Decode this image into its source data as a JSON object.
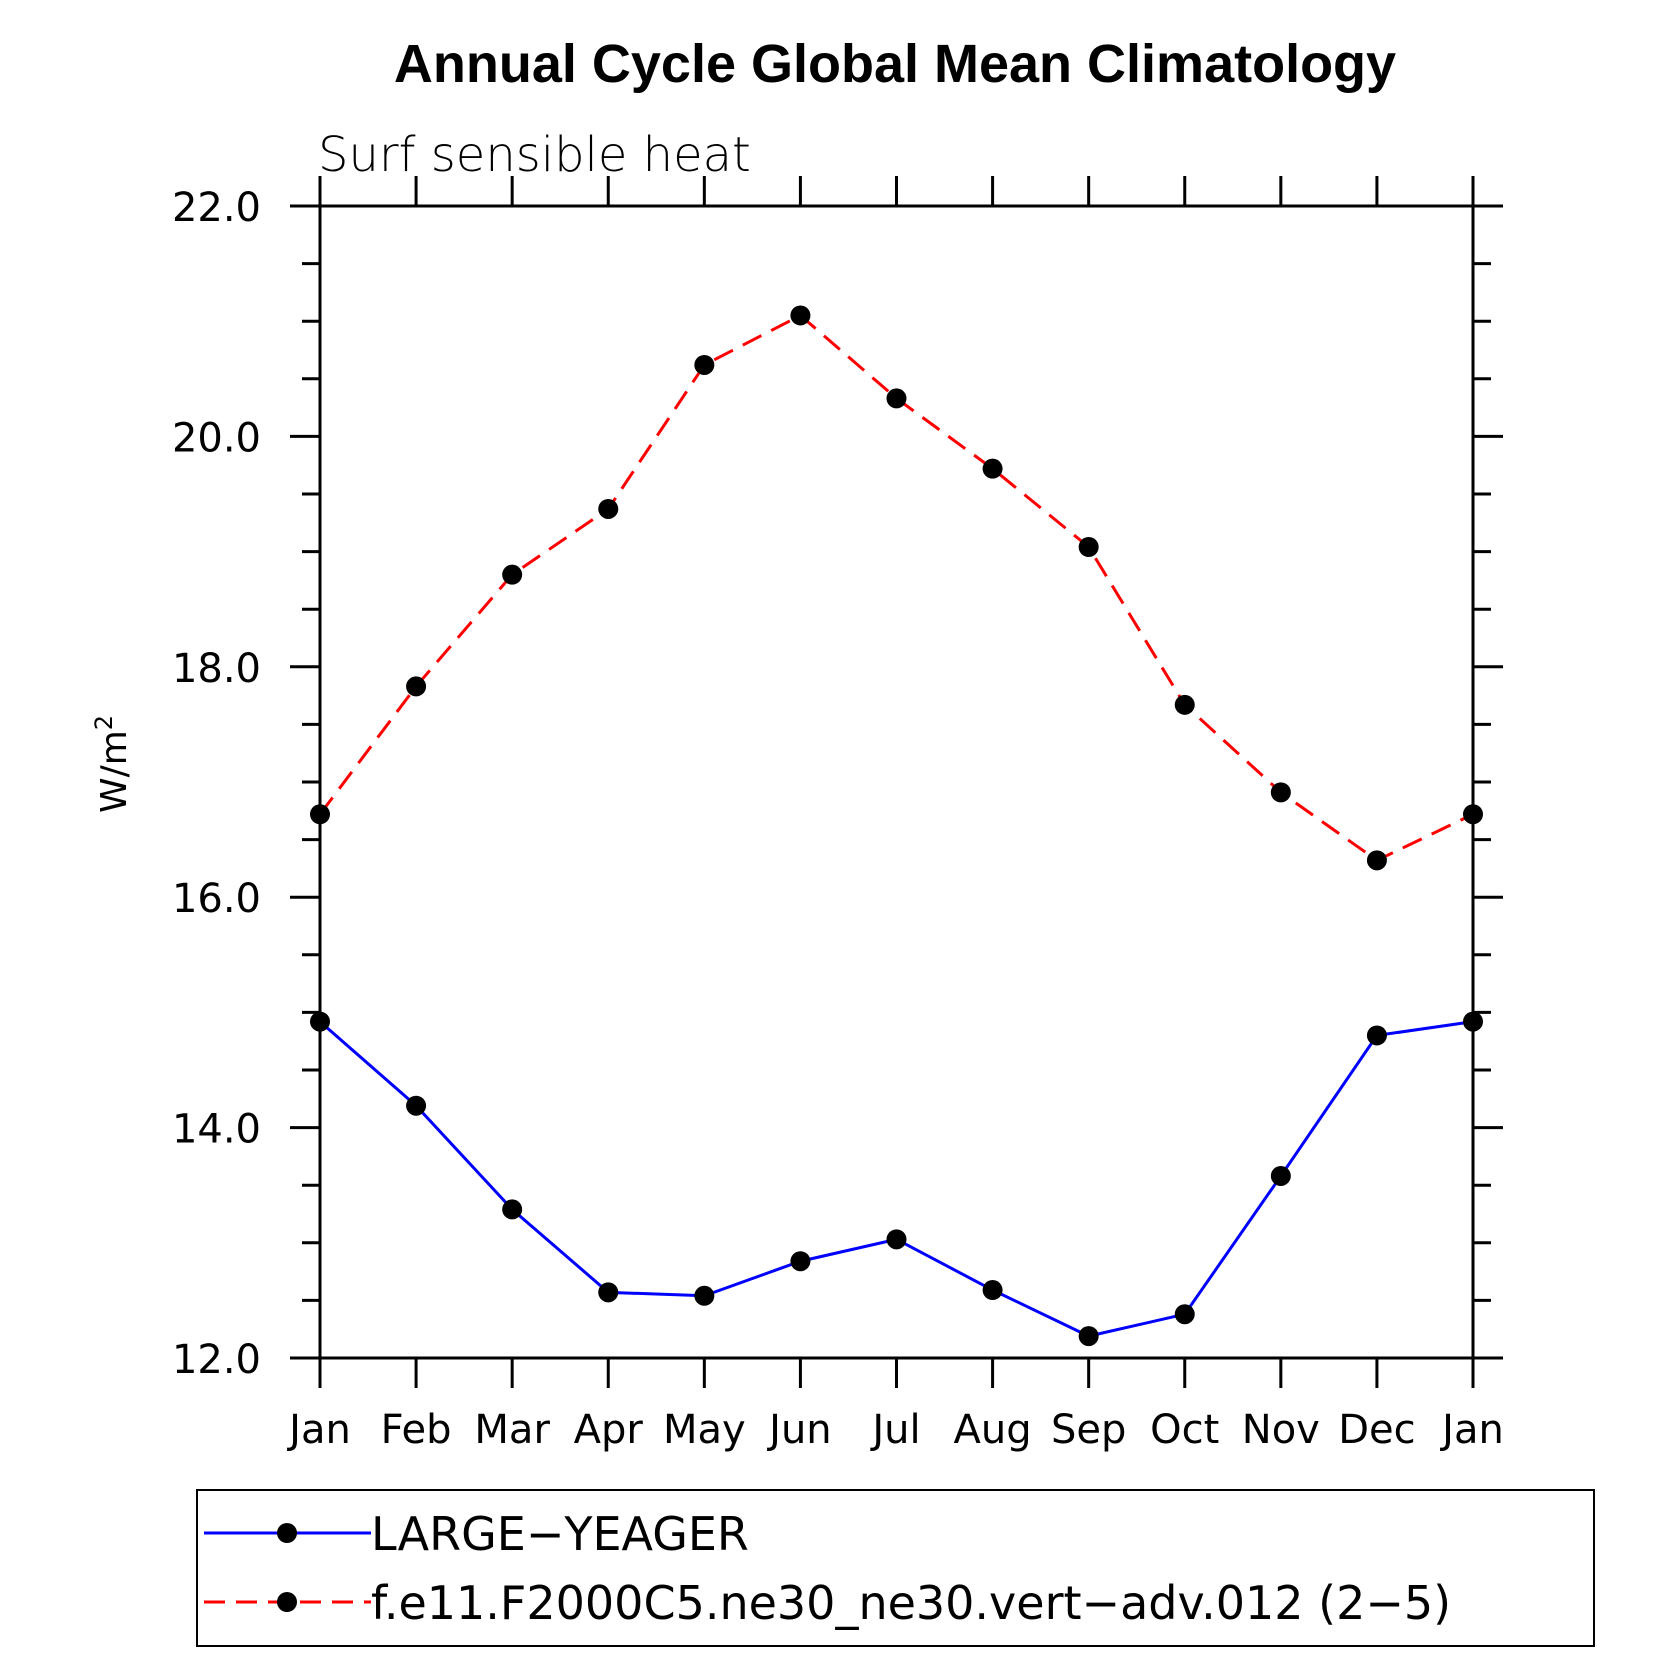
{
  "chart_data": {
    "type": "line",
    "title": "Annual Cycle Global Mean Climatology",
    "subtitle": "Surf sensible heat",
    "xlabel": "",
    "ylabel_base": "W/m",
    "ylabel_sup": "2",
    "categories": [
      "Jan",
      "Feb",
      "Mar",
      "Apr",
      "May",
      "Jun",
      "Jul",
      "Aug",
      "Sep",
      "Oct",
      "Nov",
      "Dec",
      "Jan"
    ],
    "ylim": [
      12.0,
      22.0
    ],
    "y_major_ticks": [
      "12.0",
      "14.0",
      "16.0",
      "18.0",
      "20.0",
      "22.0"
    ],
    "y_minor_step": 0.5,
    "grid": false,
    "legend_position": "bottom",
    "series": [
      {
        "name": "LARGE-YEAGER",
        "color": "#0000ff",
        "dash": "solid",
        "marker": "filled-circle",
        "values": [
          14.92,
          14.19,
          13.29,
          12.57,
          12.54,
          12.84,
          13.03,
          12.59,
          12.19,
          12.38,
          13.58,
          14.8,
          14.92
        ]
      },
      {
        "name": "f.e11.F2000C5.ne30_ne30.vert−adv.012 (2−5)",
        "color": "#ff0000",
        "dash": "dashed",
        "marker": "filled-circle",
        "values": [
          16.72,
          17.83,
          18.8,
          19.37,
          20.62,
          21.05,
          20.33,
          19.72,
          19.04,
          17.67,
          16.91,
          16.32,
          16.72
        ]
      }
    ]
  },
  "legend": {
    "entries": [
      "LARGE−YEAGER",
      "f.e11.F2000C5.ne30_ne30.vert−adv.012 (2−5)"
    ]
  }
}
